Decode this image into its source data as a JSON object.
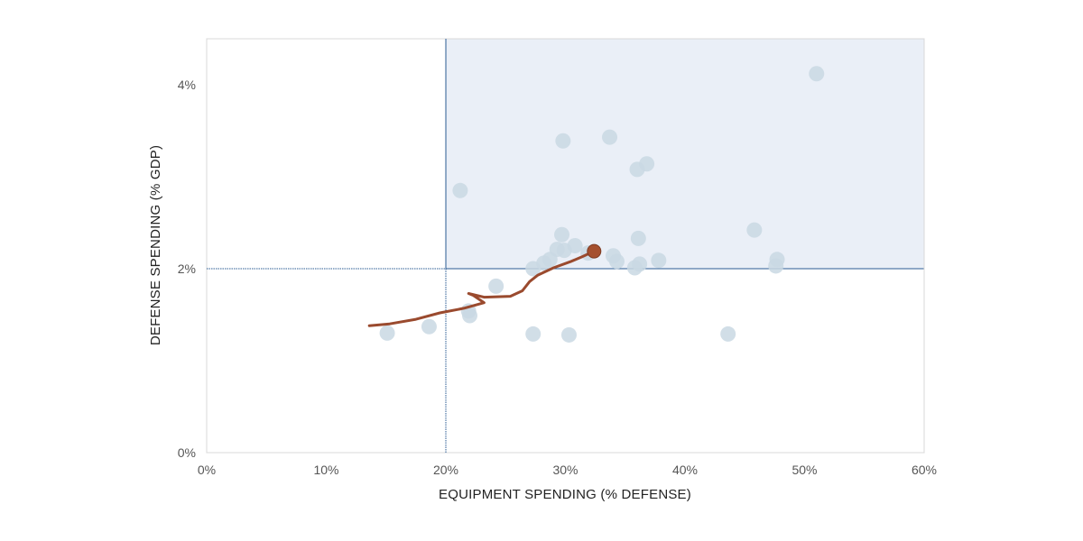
{
  "chart_data": {
    "type": "scatter",
    "title": "",
    "xlabel": "EQUIPMENT SPENDING (% DEFENSE)",
    "ylabel": "DEFENSE SPENDING (% GDP)",
    "xlim": [
      0,
      60
    ],
    "ylim": [
      0,
      4.5
    ],
    "x_ticks": [
      0,
      10,
      20,
      30,
      40,
      50,
      60
    ],
    "x_tick_labels": [
      "0%",
      "10%",
      "20%",
      "30%",
      "40%",
      "50%",
      "60%"
    ],
    "y_ticks": [
      0,
      2,
      4
    ],
    "y_tick_labels": [
      "0%",
      "2%",
      "4%"
    ],
    "grid": false,
    "legend": "none",
    "reference_lines": {
      "x": 20,
      "y": 2
    },
    "target_region": {
      "x_min": 20,
      "x_max": 60,
      "y_min": 2,
      "y_max": 4.5
    },
    "series": [
      {
        "type": "scatter",
        "points": [
          {
            "x": 51.0,
            "y": 4.12
          },
          {
            "x": 33.7,
            "y": 3.43
          },
          {
            "x": 29.8,
            "y": 3.39
          },
          {
            "x": 36.8,
            "y": 3.14
          },
          {
            "x": 36.0,
            "y": 3.08
          },
          {
            "x": 21.2,
            "y": 2.85
          },
          {
            "x": 45.8,
            "y": 2.42
          },
          {
            "x": 29.7,
            "y": 2.37
          },
          {
            "x": 36.1,
            "y": 2.33
          },
          {
            "x": 30.8,
            "y": 2.25
          },
          {
            "x": 29.3,
            "y": 2.21
          },
          {
            "x": 29.9,
            "y": 2.2
          },
          {
            "x": 31.9,
            "y": 2.17
          },
          {
            "x": 34.0,
            "y": 2.14
          },
          {
            "x": 28.7,
            "y": 2.1
          },
          {
            "x": 34.3,
            "y": 2.08
          },
          {
            "x": 37.8,
            "y": 2.09
          },
          {
            "x": 47.7,
            "y": 2.1
          },
          {
            "x": 28.2,
            "y": 2.06
          },
          {
            "x": 36.2,
            "y": 2.05
          },
          {
            "x": 47.6,
            "y": 2.03
          },
          {
            "x": 35.8,
            "y": 2.01
          },
          {
            "x": 27.3,
            "y": 2.0
          },
          {
            "x": 24.2,
            "y": 1.81
          },
          {
            "x": 21.9,
            "y": 1.54
          },
          {
            "x": 22.0,
            "y": 1.49
          },
          {
            "x": 18.6,
            "y": 1.37
          },
          {
            "x": 15.1,
            "y": 1.3
          },
          {
            "x": 27.3,
            "y": 1.29
          },
          {
            "x": 30.3,
            "y": 1.28
          },
          {
            "x": 43.6,
            "y": 1.29
          }
        ]
      },
      {
        "type": "line",
        "points": [
          {
            "x": 13.6,
            "y": 1.38
          },
          {
            "x": 15.3,
            "y": 1.4
          },
          {
            "x": 17.5,
            "y": 1.45
          },
          {
            "x": 19.5,
            "y": 1.52
          },
          {
            "x": 21.5,
            "y": 1.57
          },
          {
            "x": 23.2,
            "y": 1.63
          },
          {
            "x": 22.3,
            "y": 1.71
          },
          {
            "x": 21.9,
            "y": 1.73
          },
          {
            "x": 23.2,
            "y": 1.69
          },
          {
            "x": 25.4,
            "y": 1.7
          },
          {
            "x": 26.4,
            "y": 1.76
          },
          {
            "x": 27.0,
            "y": 1.86
          },
          {
            "x": 27.7,
            "y": 1.93
          },
          {
            "x": 29.0,
            "y": 2.01
          },
          {
            "x": 30.5,
            "y": 2.08
          },
          {
            "x": 31.4,
            "y": 2.13
          },
          {
            "x": 32.4,
            "y": 2.19
          }
        ],
        "end_marker": {
          "x": 32.4,
          "y": 2.19
        }
      }
    ]
  },
  "colors": {
    "scatter_point": "#c9d8e3",
    "trajectory": "#9a4a2e",
    "end_marker": "#a5502f",
    "reference_line": "#2a5b93",
    "target_fill": "#eaeff7",
    "plot_border": "#d8d8d8",
    "tick_text": "#555555",
    "axis_title": "#222222"
  }
}
